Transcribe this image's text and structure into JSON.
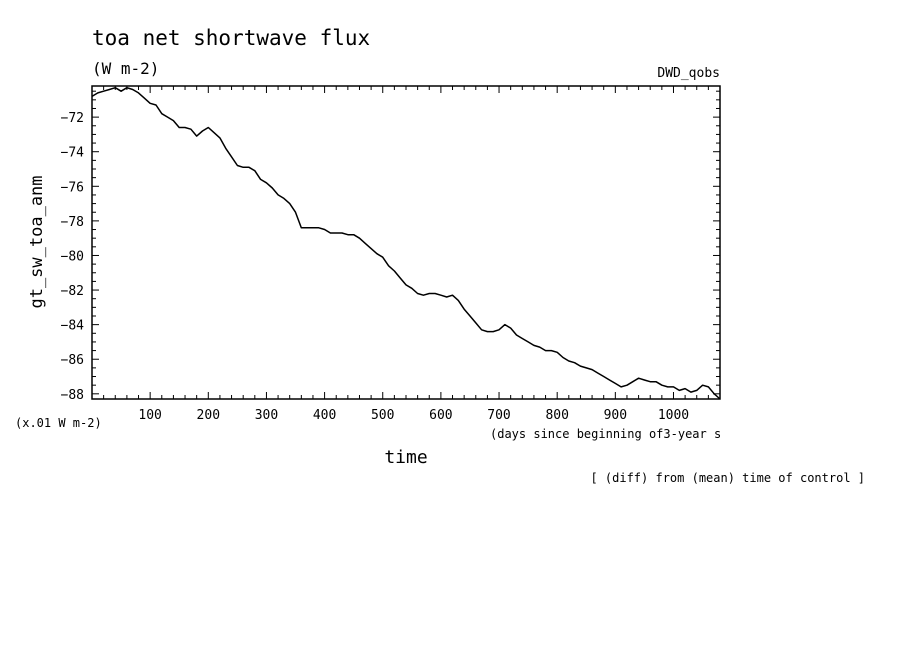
{
  "title": "toa net shortwave flux",
  "units_label": "(W m-2)",
  "source_label": "DWD_qobs",
  "scale_note": "(x.01 W m-2)",
  "xaxis_note": "(days since beginning of3-year s",
  "footer_note": "[ (diff) from (mean) time of control ]",
  "chart_data": {
    "type": "line",
    "title": "toa net shortwave flux",
    "xlabel": "time",
    "ylabel": "gt_sw_toa_anm",
    "xlim": [
      0,
      1080
    ],
    "ylim": [
      -88.3,
      -70.2
    ],
    "xticks": [
      100,
      200,
      300,
      400,
      500,
      600,
      700,
      800,
      900,
      1000
    ],
    "yticks": [
      -72,
      -74,
      -76,
      -78,
      -80,
      -82,
      -84,
      -86,
      -88
    ],
    "grid": false,
    "series": [
      {
        "x": [
          0,
          10,
          20,
          30,
          40,
          50,
          60,
          70,
          80,
          90,
          100,
          110,
          120,
          130,
          140,
          150,
          160,
          170,
          180,
          190,
          200,
          210,
          220,
          230,
          240,
          250,
          260,
          270,
          280,
          290,
          300,
          310,
          320,
          330,
          340,
          350,
          360,
          370,
          380,
          390,
          400,
          410,
          420,
          430,
          440,
          450,
          460,
          470,
          480,
          490,
          500,
          510,
          520,
          530,
          540,
          550,
          560,
          570,
          580,
          590,
          600,
          610,
          620,
          630,
          640,
          650,
          660,
          670,
          680,
          690,
          700,
          710,
          720,
          730,
          740,
          750,
          760,
          770,
          780,
          790,
          800,
          810,
          820,
          830,
          840,
          850,
          860,
          870,
          880,
          890,
          900,
          910,
          920,
          930,
          940,
          950,
          960,
          970,
          980,
          990,
          1000,
          1010,
          1020,
          1030,
          1040,
          1050,
          1060,
          1070,
          1080
        ],
        "y": [
          -70.8,
          -70.6,
          -70.5,
          -70.4,
          -70.3,
          -70.5,
          -70.3,
          -70.4,
          -70.6,
          -70.9,
          -71.2,
          -71.3,
          -71.8,
          -72.0,
          -72.2,
          -72.6,
          -72.6,
          -72.7,
          -73.1,
          -72.8,
          -72.6,
          -72.9,
          -73.2,
          -73.8,
          -74.3,
          -74.8,
          -74.9,
          -74.9,
          -75.1,
          -75.6,
          -75.8,
          -76.1,
          -76.5,
          -76.7,
          -77.0,
          -77.5,
          -78.4,
          -78.4,
          -78.4,
          -78.4,
          -78.5,
          -78.7,
          -78.7,
          -78.7,
          -78.8,
          -78.8,
          -79.0,
          -79.3,
          -79.6,
          -79.9,
          -80.1,
          -80.6,
          -80.9,
          -81.3,
          -81.7,
          -81.9,
          -82.2,
          -82.3,
          -82.2,
          -82.2,
          -82.3,
          -82.4,
          -82.3,
          -82.6,
          -83.1,
          -83.5,
          -83.9,
          -84.3,
          -84.4,
          -84.4,
          -84.3,
          -84.0,
          -84.2,
          -84.6,
          -84.8,
          -85.0,
          -85.2,
          -85.3,
          -85.5,
          -85.5,
          -85.6,
          -85.9,
          -86.1,
          -86.2,
          -86.4,
          -86.5,
          -86.6,
          -86.8,
          -87.0,
          -87.2,
          -87.4,
          -87.6,
          -87.5,
          -87.3,
          -87.1,
          -87.2,
          -87.3,
          -87.3,
          -87.5,
          -87.6,
          -87.6,
          -87.8,
          -87.7,
          -87.9,
          -87.8,
          -87.5,
          -87.6,
          -88.0,
          -88.3
        ]
      }
    ]
  }
}
